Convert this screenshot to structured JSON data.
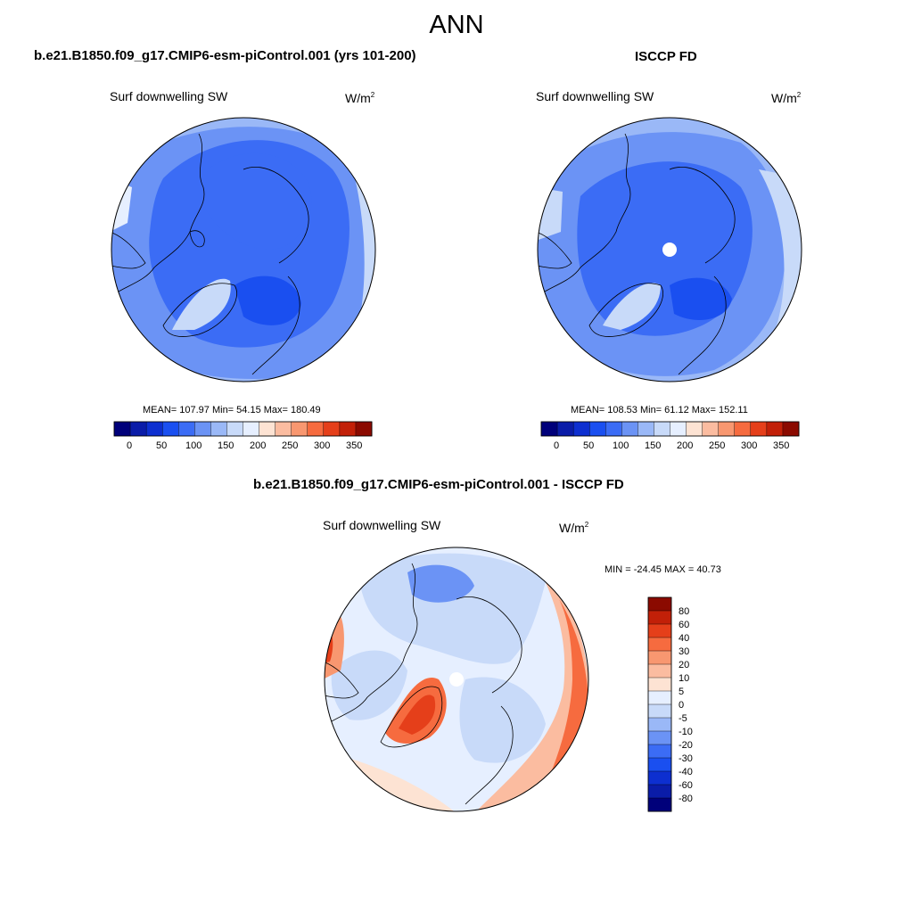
{
  "figure": {
    "title": "ANN"
  },
  "palette": {
    "abs_levels": [
      "#00007a",
      "#0a1ca8",
      "#0d2fd0",
      "#1a4ff0",
      "#3b6cf5",
      "#6b93f5",
      "#9ab8f7",
      "#c8daf9",
      "#e6efff",
      "#fde3d3",
      "#fbbca0",
      "#f89770",
      "#f66b3f",
      "#e53f1a",
      "#c22008",
      "#8b0a00"
    ],
    "diff_levels": [
      "#00007a",
      "#0a1ca8",
      "#0d2fd0",
      "#1a4ff0",
      "#3b6cf5",
      "#6b93f5",
      "#9ab8f7",
      "#c8daf9",
      "#e6efff",
      "#fde3d3",
      "#fbbca0",
      "#f89770",
      "#f66b3f",
      "#e53f1a",
      "#c22008",
      "#8b0a00"
    ],
    "coast": "#000000",
    "missing": "#ffffff"
  },
  "chart_data": [
    {
      "type": "heatmap",
      "projection": "polar-stereographic (north)",
      "panel_title": "b.e21.B1850.f09_g17.CMIP6-esm-piControl.001 (yrs 101-200)",
      "left_string": "Surf downwelling SW",
      "units_base": "W/m",
      "units_sup": "2",
      "stats_text": "MEAN= 107.97  Min=  54.15  Max= 180.49",
      "mean": 107.97,
      "min": 54.15,
      "max": 180.49,
      "colorbar": {
        "orientation": "horizontal",
        "tick_labels": [
          "0",
          "50",
          "100",
          "150",
          "200",
          "250",
          "300",
          "350"
        ]
      }
    },
    {
      "type": "heatmap",
      "projection": "polar-stereographic (north)",
      "panel_title": "ISCCP FD",
      "left_string": "Surf downwelling SW",
      "units_base": "W/m",
      "units_sup": "2",
      "stats_text": "MEAN= 108.53  Min=  61.12  Max= 152.11",
      "mean": 108.53,
      "min": 61.12,
      "max": 152.11,
      "colorbar": {
        "orientation": "horizontal",
        "tick_labels": [
          "0",
          "50",
          "100",
          "150",
          "200",
          "250",
          "300",
          "350"
        ]
      }
    },
    {
      "type": "heatmap",
      "projection": "polar-stereographic (north)",
      "panel_title": "b.e21.B1850.f09_g17.CMIP6-esm-piControl.001 - ISCCP FD",
      "left_string": "Surf downwelling SW",
      "units_base": "W/m",
      "units_sup": "2",
      "stats_text": "MIN = -24.45 MAX =  40.73",
      "min": -24.45,
      "max": 40.73,
      "colorbar": {
        "orientation": "vertical",
        "tick_labels": [
          "80",
          "60",
          "40",
          "30",
          "20",
          "10",
          "5",
          "0",
          "-5",
          "-10",
          "-20",
          "-30",
          "-40",
          "-60",
          "-80"
        ]
      }
    }
  ]
}
